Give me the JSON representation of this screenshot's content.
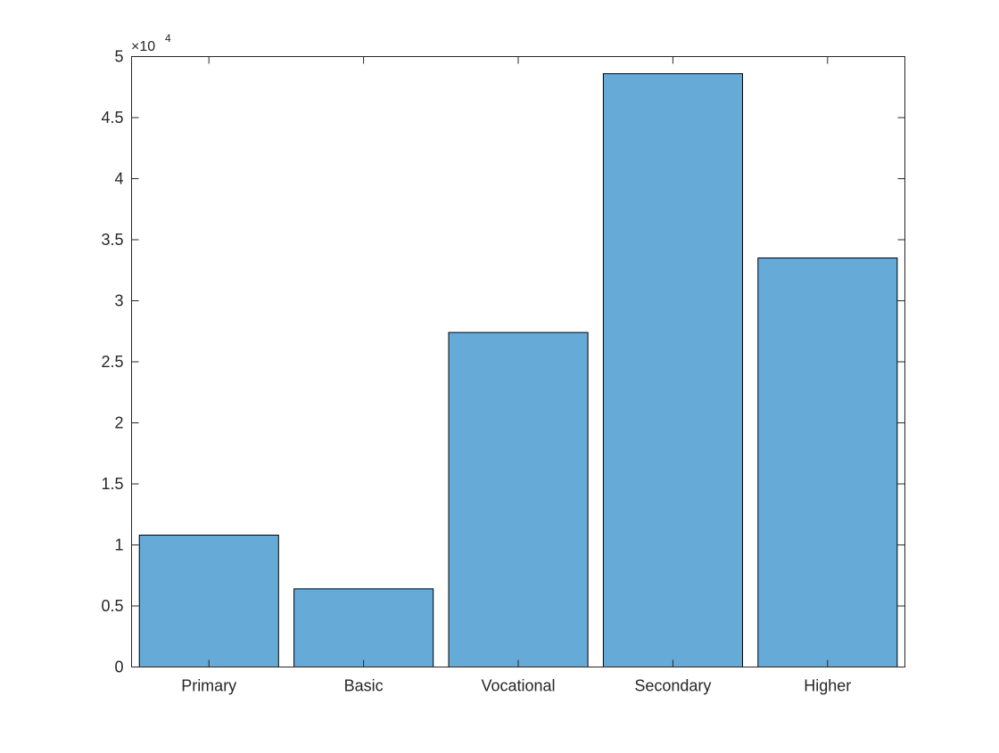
{
  "chart_data": {
    "type": "bar",
    "categories": [
      "Primary",
      "Basic",
      "Vocational",
      "Secondary",
      "Higher"
    ],
    "values": [
      10800,
      6400,
      27400,
      48600,
      33500
    ],
    "ylim": [
      0,
      50000
    ],
    "yticks": [
      0,
      0.5,
      1,
      1.5,
      2,
      2.5,
      3,
      3.5,
      4,
      4.5,
      5
    ],
    "ytick_labels": [
      "0",
      "0.5",
      "1",
      "1.5",
      "2",
      "2.5",
      "3",
      "3.5",
      "4",
      "4.5",
      "5"
    ],
    "y_exponent_base": "×10",
    "y_exponent_power": "4",
    "bar_color": "#66aad8",
    "bar_edge_color": "#000000",
    "grid": false,
    "box": true
  }
}
